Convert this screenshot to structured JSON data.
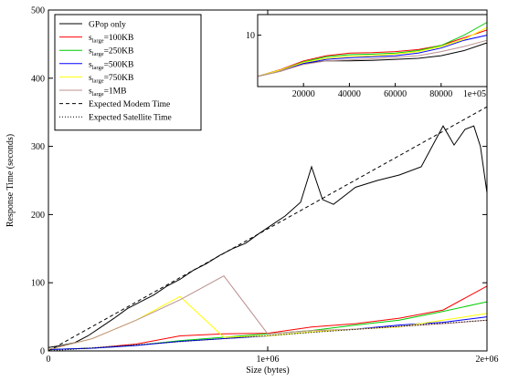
{
  "chart_data": [
    {
      "type": "line",
      "title": "",
      "xlabel": "Size (bytes)",
      "ylabel": "Response Time (seconds)",
      "xlim": [
        0,
        2000000
      ],
      "ylim": [
        0,
        500
      ],
      "x_ticks": [
        0,
        1000000,
        2000000
      ],
      "x_tick_labels": [
        "0",
        "1e+06",
        "2e+06"
      ],
      "y_ticks": [
        0,
        100,
        200,
        300,
        400,
        500
      ],
      "y_tick_labels": [
        "0",
        "100",
        "200",
        "300",
        "400",
        "500"
      ],
      "grid": false,
      "legend_position": "top-left",
      "legend": [
        {
          "prefix": "GPop only",
          "sub": "",
          "suffix": "",
          "color": "#000000",
          "dash": ""
        },
        {
          "prefix": "s",
          "sub": "large",
          "suffix": "=100KB",
          "color": "#ff0000",
          "dash": ""
        },
        {
          "prefix": "s",
          "sub": "large",
          "suffix": "=250KB",
          "color": "#00cc00",
          "dash": ""
        },
        {
          "prefix": "s",
          "sub": "large",
          "suffix": "=500KB",
          "color": "#0000ff",
          "dash": ""
        },
        {
          "prefix": "s",
          "sub": "large",
          "suffix": "=750KB",
          "color": "#ffff00",
          "dash": ""
        },
        {
          "prefix": "s",
          "sub": "large",
          "suffix": "=1MB",
          "color": "#bc8f8f",
          "dash": ""
        },
        {
          "prefix": "Expected Modem Time",
          "sub": "",
          "suffix": "",
          "color": "#000000",
          "dash": "4,3"
        },
        {
          "prefix": "Expected Satellite Time",
          "sub": "",
          "suffix": "",
          "color": "#000000",
          "dash": "1,2"
        }
      ],
      "series": [
        {
          "color": "#000000",
          "dash": "",
          "points": [
            [
              0,
              5
            ],
            [
              60000,
              8
            ],
            [
              120000,
              12
            ],
            [
              180000,
              22
            ],
            [
              240000,
              35
            ],
            [
              300000,
              48
            ],
            [
              360000,
              62
            ],
            [
              420000,
              72
            ],
            [
              480000,
              82
            ],
            [
              540000,
              95
            ],
            [
              600000,
              105
            ],
            [
              660000,
              118
            ],
            [
              720000,
              128
            ],
            [
              780000,
              140
            ],
            [
              840000,
              150
            ],
            [
              900000,
              158
            ],
            [
              960000,
              172
            ],
            [
              1020000,
              185
            ],
            [
              1080000,
              198
            ],
            [
              1150000,
              218
            ],
            [
              1200000,
              270
            ],
            [
              1250000,
              222
            ],
            [
              1300000,
              215
            ],
            [
              1400000,
              240
            ],
            [
              1500000,
              250
            ],
            [
              1600000,
              258
            ],
            [
              1700000,
              270
            ],
            [
              1800000,
              330
            ],
            [
              1850000,
              302
            ],
            [
              1900000,
              325
            ],
            [
              1940000,
              330
            ],
            [
              1970000,
              300
            ],
            [
              2000000,
              232
            ]
          ]
        },
        {
          "color": "#ff0000",
          "dash": "",
          "points": [
            [
              0,
              2
            ],
            [
              200000,
              4
            ],
            [
              400000,
              10
            ],
            [
              600000,
              22
            ],
            [
              800000,
              25
            ],
            [
              1000000,
              26
            ],
            [
              1200000,
              35
            ],
            [
              1400000,
              40
            ],
            [
              1600000,
              48
            ],
            [
              1800000,
              60
            ],
            [
              2000000,
              95
            ]
          ]
        },
        {
          "color": "#00cc00",
          "dash": "",
          "points": [
            [
              0,
              2
            ],
            [
              200000,
              4
            ],
            [
              400000,
              8
            ],
            [
              600000,
              15
            ],
            [
              800000,
              20
            ],
            [
              1000000,
              25
            ],
            [
              1200000,
              30
            ],
            [
              1400000,
              38
            ],
            [
              1600000,
              45
            ],
            [
              1800000,
              58
            ],
            [
              2000000,
              72
            ]
          ]
        },
        {
          "color": "#0000ff",
          "dash": "",
          "points": [
            [
              0,
              2
            ],
            [
              200000,
              4
            ],
            [
              400000,
              8
            ],
            [
              600000,
              14
            ],
            [
              800000,
              18
            ],
            [
              1000000,
              22
            ],
            [
              1200000,
              28
            ],
            [
              1400000,
              32
            ],
            [
              1600000,
              38
            ],
            [
              1800000,
              42
            ],
            [
              2000000,
              50
            ]
          ]
        },
        {
          "color": "#ffff00",
          "dash": "",
          "points": [
            [
              0,
              2
            ],
            [
              200000,
              18
            ],
            [
              400000,
              45
            ],
            [
              600000,
              80
            ],
            [
              800000,
              20
            ],
            [
              1000000,
              22
            ],
            [
              1200000,
              28
            ],
            [
              1400000,
              32
            ],
            [
              1600000,
              35
            ],
            [
              1800000,
              45
            ],
            [
              2000000,
              55
            ]
          ]
        },
        {
          "color": "#bc8f8f",
          "dash": "",
          "points": [
            [
              0,
              2
            ],
            [
              200000,
              18
            ],
            [
              400000,
              45
            ],
            [
              600000,
              75
            ],
            [
              800000,
              110
            ],
            [
              1000000,
              25
            ],
            [
              1200000,
              30
            ],
            [
              1400000,
              32
            ],
            [
              1600000,
              36
            ],
            [
              1800000,
              40
            ],
            [
              2000000,
              45
            ]
          ]
        },
        {
          "color": "#000000",
          "dash": "4,3",
          "points": [
            [
              0,
              0
            ],
            [
              2000000,
              358
            ]
          ]
        },
        {
          "color": "#000000",
          "dash": "1,2",
          "points": [
            [
              0,
              0
            ],
            [
              2000000,
              45
            ]
          ]
        }
      ]
    },
    {
      "type": "line",
      "title": "",
      "xlabel": "",
      "ylabel": "",
      "xlim": [
        0,
        100000
      ],
      "ylim": [
        0,
        14
      ],
      "x_ticks": [
        20000,
        40000,
        60000,
        80000,
        100000
      ],
      "x_tick_labels": [
        "20000",
        "40000",
        "60000",
        "80000",
        "1e+05"
      ],
      "y_ticks": [
        10
      ],
      "y_tick_labels": [
        "10"
      ],
      "grid": false,
      "series": [
        {
          "color": "#000000",
          "dash": "",
          "points": [
            [
              0,
              2
            ],
            [
              10000,
              3
            ],
            [
              20000,
              4.5
            ],
            [
              30000,
              5
            ],
            [
              40000,
              5
            ],
            [
              50000,
              5.1
            ],
            [
              60000,
              5.3
            ],
            [
              70000,
              5.5
            ],
            [
              80000,
              6
            ],
            [
              90000,
              7
            ],
            [
              100000,
              8.5
            ]
          ]
        },
        {
          "color": "#ff0000",
          "dash": "",
          "points": [
            [
              0,
              2
            ],
            [
              10000,
              3.3
            ],
            [
              20000,
              5
            ],
            [
              30000,
              6
            ],
            [
              40000,
              6.5
            ],
            [
              50000,
              6.6
            ],
            [
              60000,
              6.8
            ],
            [
              70000,
              7.2
            ],
            [
              80000,
              8
            ],
            [
              90000,
              9.5
            ],
            [
              100000,
              11
            ]
          ]
        },
        {
          "color": "#00cc00",
          "dash": "",
          "points": [
            [
              0,
              2
            ],
            [
              10000,
              3.2
            ],
            [
              20000,
              4.8
            ],
            [
              30000,
              5.8
            ],
            [
              40000,
              6.2
            ],
            [
              50000,
              6.3
            ],
            [
              60000,
              6.5
            ],
            [
              70000,
              7
            ],
            [
              80000,
              8
            ],
            [
              90000,
              10
            ],
            [
              100000,
              12.5
            ]
          ]
        },
        {
          "color": "#0000ff",
          "dash": "",
          "points": [
            [
              0,
              2
            ],
            [
              10000,
              3.1
            ],
            [
              20000,
              4.5
            ],
            [
              30000,
              5.3
            ],
            [
              40000,
              5.6
            ],
            [
              50000,
              5.8
            ],
            [
              60000,
              6
            ],
            [
              70000,
              6.5
            ],
            [
              80000,
              7.5
            ],
            [
              90000,
              9
            ],
            [
              100000,
              10
            ]
          ]
        },
        {
          "color": "#ffff00",
          "dash": "",
          "points": [
            [
              0,
              2
            ],
            [
              10000,
              3.2
            ],
            [
              20000,
              4.7
            ],
            [
              30000,
              5.5
            ],
            [
              40000,
              5.9
            ],
            [
              50000,
              6
            ],
            [
              60000,
              6.3
            ],
            [
              70000,
              6.8
            ],
            [
              80000,
              7.8
            ],
            [
              90000,
              9.2
            ],
            [
              100000,
              11.5
            ]
          ]
        },
        {
          "color": "#bc8f8f",
          "dash": "",
          "points": [
            [
              0,
              2
            ],
            [
              10000,
              3
            ],
            [
              20000,
              4.3
            ],
            [
              30000,
              5
            ],
            [
              40000,
              5.2
            ],
            [
              50000,
              5.4
            ],
            [
              60000,
              5.7
            ],
            [
              70000,
              6
            ],
            [
              80000,
              6.8
            ],
            [
              90000,
              7.8
            ],
            [
              100000,
              9
            ]
          ]
        }
      ]
    }
  ]
}
